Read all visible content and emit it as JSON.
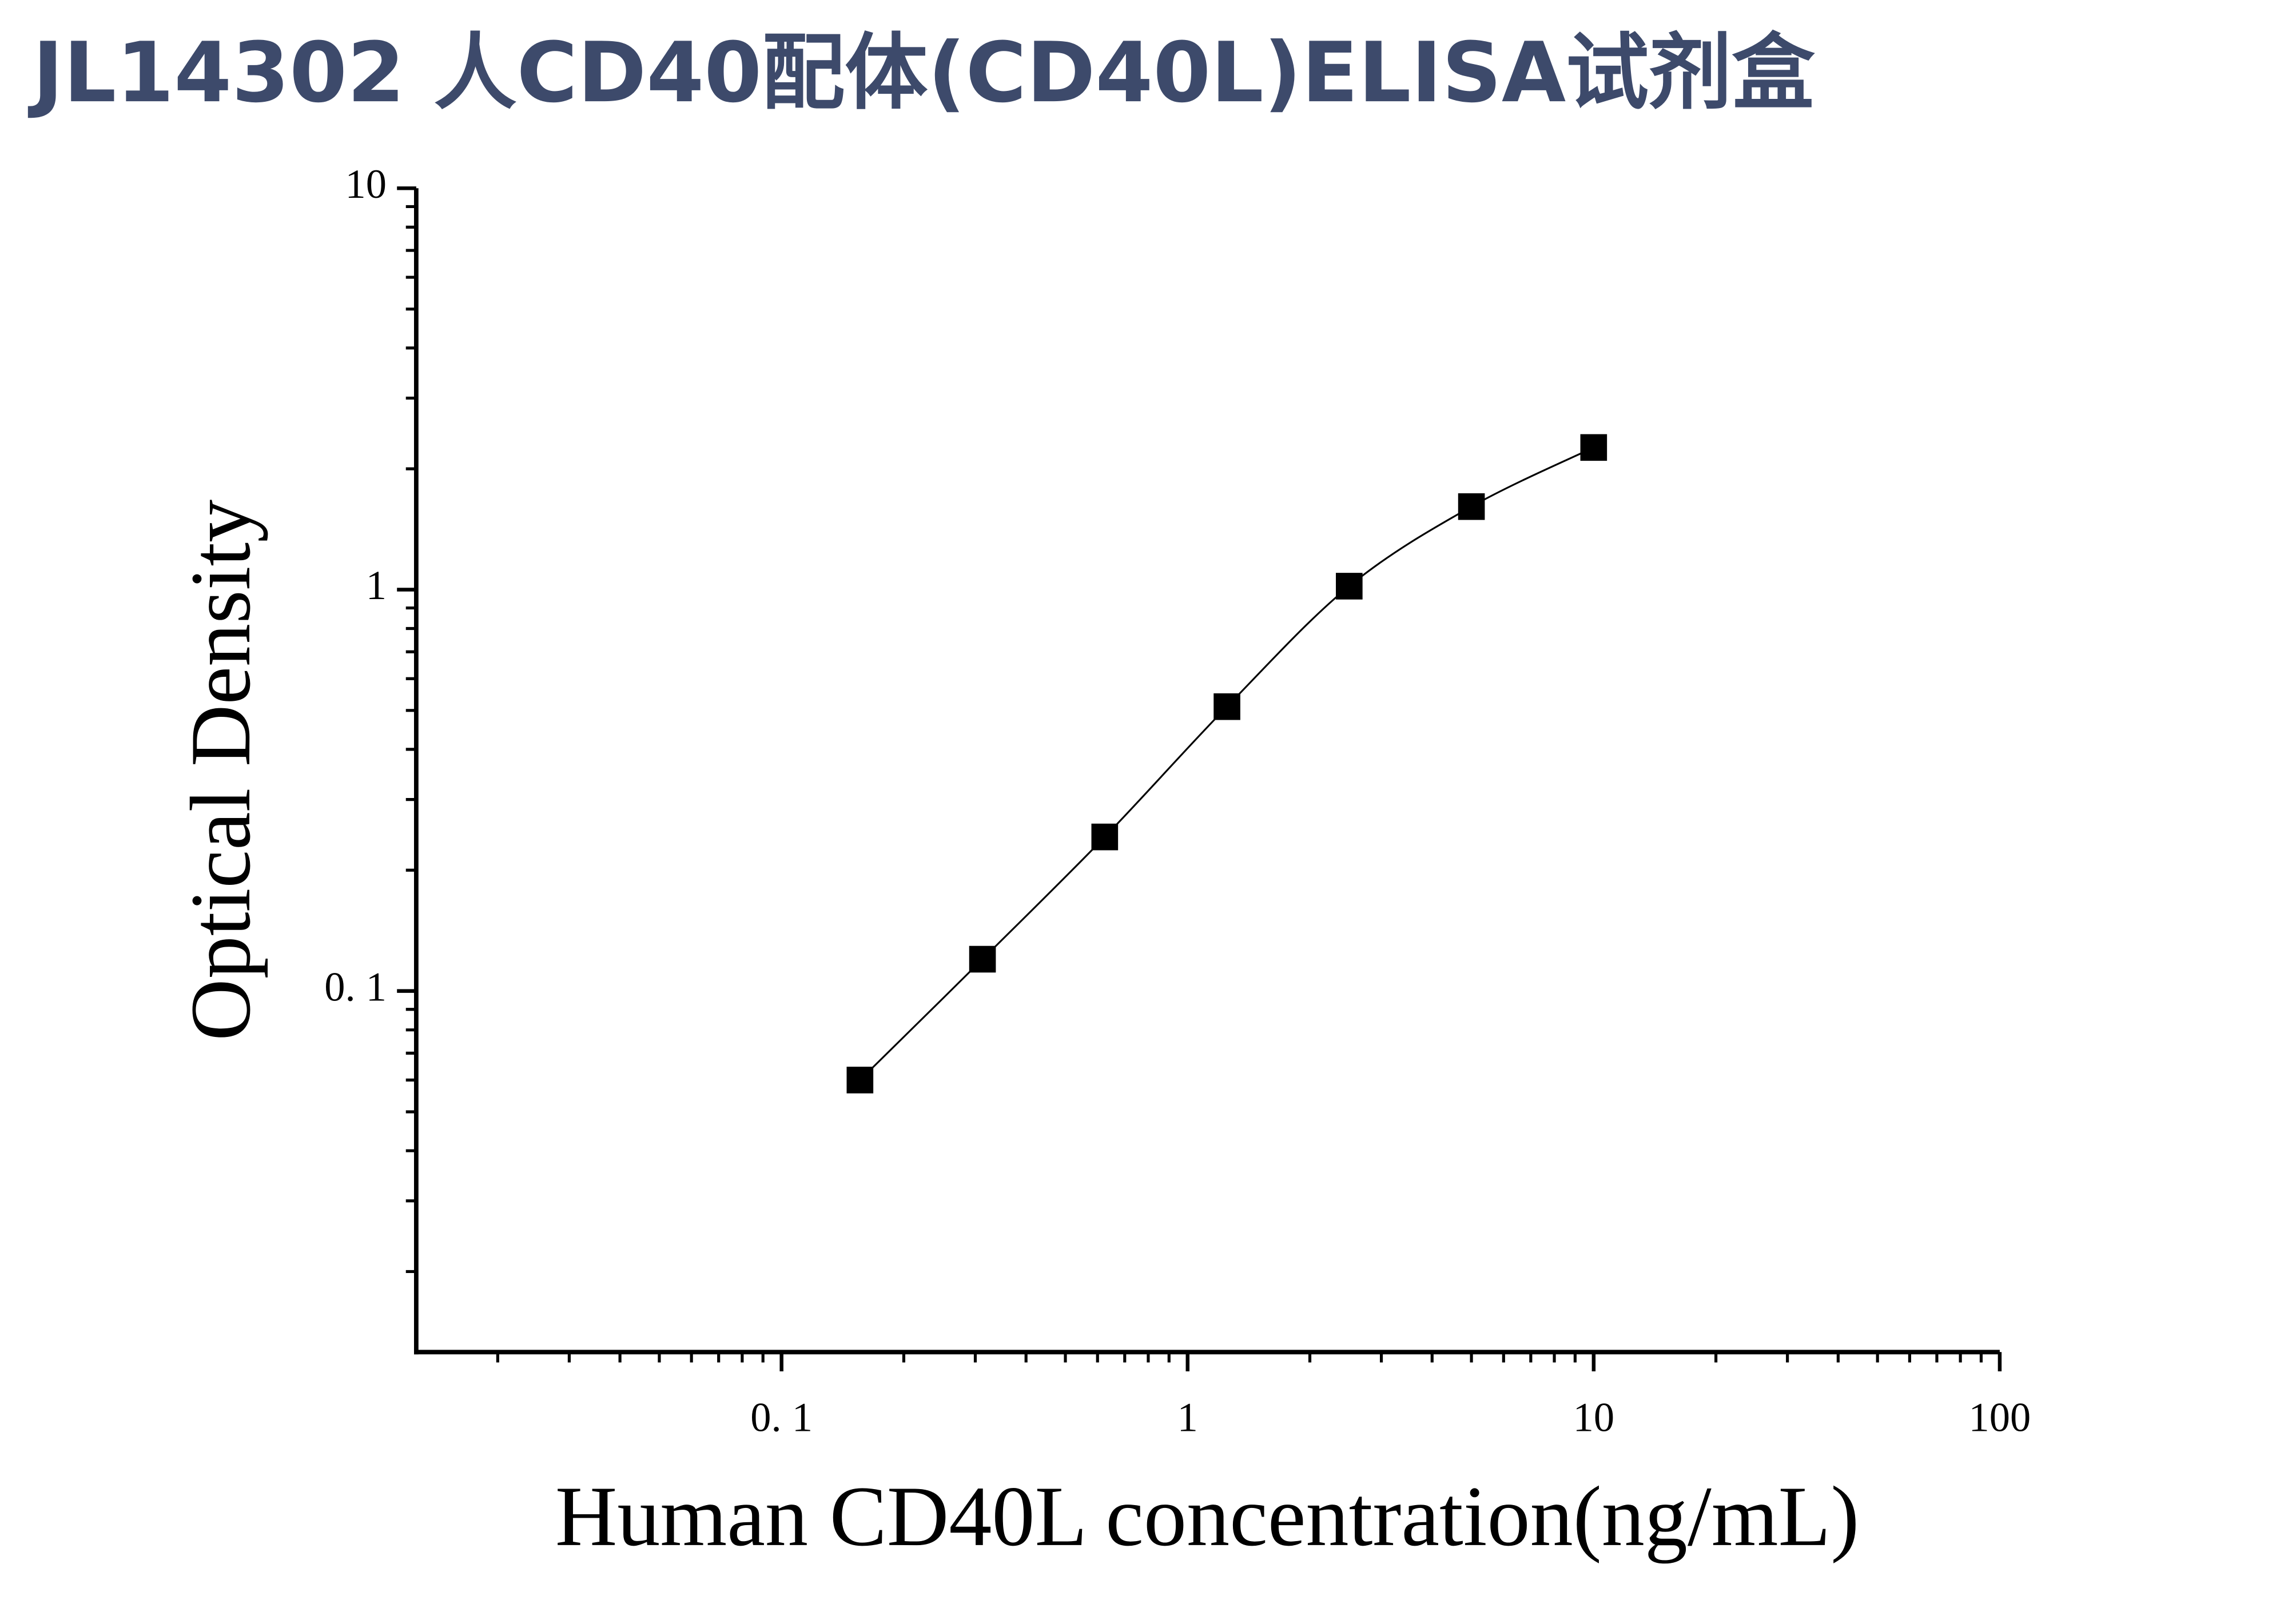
{
  "chart_data": {
    "type": "scatter",
    "title": "JL14302 人CD40配体(CD40L)ELISA试剂盒",
    "x_label": "Human CD40L concentration(ng/mL)",
    "y_label": "Optical Density",
    "x": [
      0.156,
      0.3125,
      0.625,
      1.25,
      2.5,
      5,
      10
    ],
    "values": [
      0.06,
      0.12,
      0.242,
      0.511,
      1.02,
      1.61,
      2.26
    ],
    "color": "#000000",
    "fit_curve": true,
    "xscale": "log",
    "yscale": "log",
    "xlim": [
      0.0126,
      100
    ],
    "ylim": [
      0.0126,
      10
    ],
    "xticks": [
      {
        "value": 0.1,
        "label": "0. 1"
      },
      1,
      10,
      100
    ],
    "yticks": [
      {
        "value": 0.1,
        "label": "0. 1"
      },
      1,
      10
    ]
  }
}
